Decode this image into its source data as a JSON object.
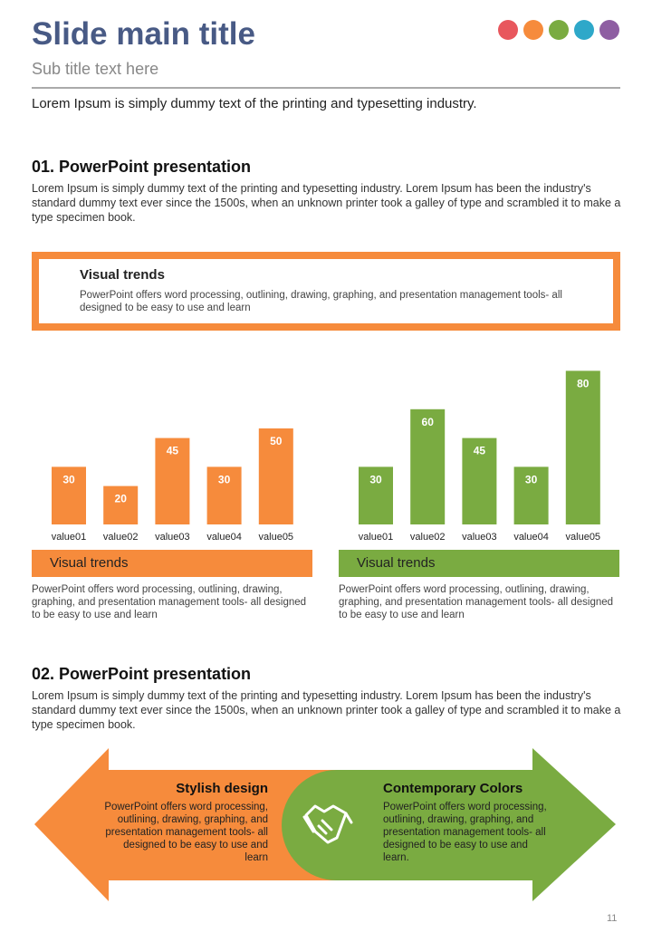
{
  "header": {
    "title": "Slide main title",
    "subtitle": "Sub title text here",
    "intro": "Lorem Ipsum is simply dummy text of the printing and typesetting industry."
  },
  "section1": {
    "heading": "01. PowerPoint presentation",
    "body": "Lorem Ipsum is simply dummy text of the printing and typesetting industry. Lorem Ipsum has been the industry's standard dummy text ever since the 1500s, when an unknown printer took a galley of type and scrambled it to make a type specimen book."
  },
  "banner": {
    "title": "Visual trends",
    "body": "PowerPoint offers word processing, outlining, drawing, graphing, and presentation management tools- all designed to be easy to use and learn"
  },
  "chart_data": [
    {
      "type": "bar",
      "categories": [
        "value01",
        "value02",
        "value03",
        "value04",
        "value05"
      ],
      "values": [
        30,
        20,
        45,
        30,
        50
      ],
      "color": "#f68b3c"
    },
    {
      "type": "bar",
      "categories": [
        "value01",
        "value02",
        "value03",
        "value04",
        "value05"
      ],
      "values": [
        30,
        60,
        45,
        30,
        80
      ],
      "color": "#7aab41"
    }
  ],
  "captions": [
    {
      "title": "Visual trends",
      "body": "PowerPoint offers word processing, outlining, drawing, graphing, and presentation management tools- all designed to be easy to use and learn"
    },
    {
      "title": "Visual trends",
      "body": "PowerPoint offers word processing, outlining, drawing, graphing, and presentation management tools- all designed to be easy to use and learn"
    }
  ],
  "section2": {
    "heading": "02. PowerPoint presentation",
    "body": "Lorem Ipsum is simply dummy text of the printing and typesetting industry. Lorem Ipsum has been the industry's standard dummy text ever since the 1500s, when an unknown printer took a galley of type and scrambled it to make a type specimen book."
  },
  "arrow": {
    "left": {
      "title": "Stylish design",
      "body": "PowerPoint offers word processing, outlining, drawing, graphing, and presentation management tools- all designed to be easy to use and learn"
    },
    "right": {
      "title": "Contemporary Colors",
      "body": "PowerPoint offers word processing, outlining, drawing, graphing, and presentation management tools- all designed to be easy to use and learn."
    }
  },
  "page_number": 11
}
